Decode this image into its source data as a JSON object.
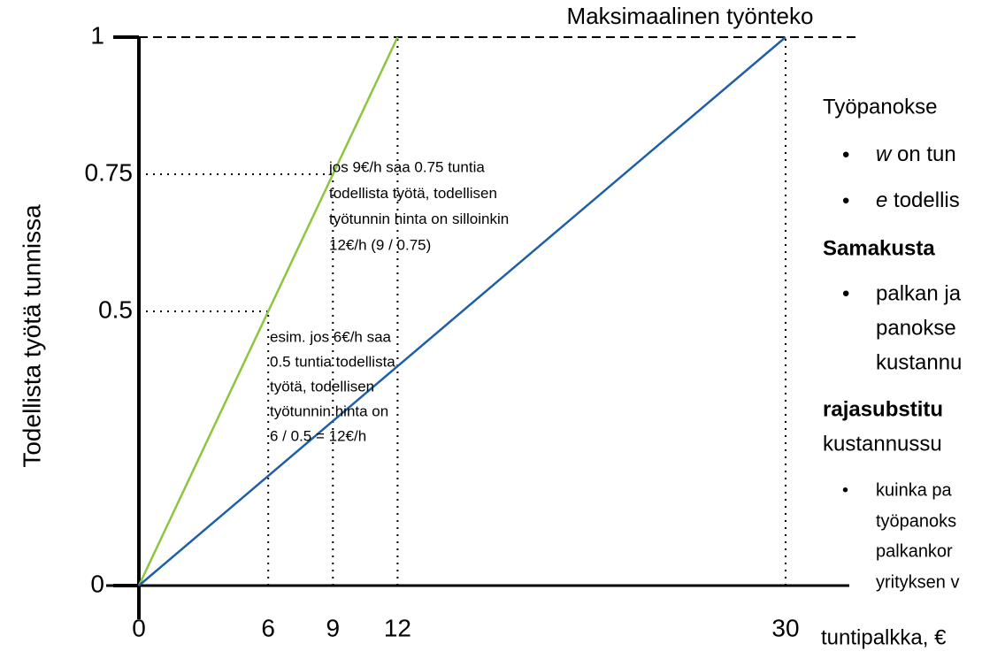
{
  "chart_data": {
    "type": "line",
    "ylabel": "Todellista työtä tunnissa",
    "xlabel": "tuntipalkka, €",
    "xlim": [
      0,
      30
    ],
    "ylim": [
      0,
      1
    ],
    "xticks": [
      0,
      6,
      9,
      12,
      30
    ],
    "yticks": [
      0,
      0.5,
      0.75,
      1
    ],
    "series": [
      {
        "color": "#8cc63e",
        "x": [
          0,
          12
        ],
        "values": [
          0,
          1
        ]
      },
      {
        "color": "#1f5fa8",
        "x": [
          0,
          30
        ],
        "values": [
          0,
          1
        ]
      }
    ],
    "max_label": "Maksimaalinen työnteko",
    "annotations": [
      [
        "jos 9€/h saa 0.75 tuntia",
        "todellista työtä, todellisen",
        "työtunnin hinta on silloinkin",
        "12€/h (9 / 0.75)"
      ],
      [
        "esim. jos 6€/h saa",
        "0.5 tuntia todellista",
        "työtä, todellisen",
        "työtunnin hinta on",
        "6 / 0.5 = 12€/h"
      ]
    ],
    "side_text": {
      "intro": "Työpanokse",
      "b1_var": "w",
      "b1_text": " on tun",
      "b2_var": "e",
      "b2_text": " todellis",
      "h1": "Samakusta",
      "b3": [
        "palkan ja",
        "panokse",
        "kustannu"
      ],
      "h2": "rajasubstitu",
      "h2b": "kustannussu",
      "b4": [
        "kuinka pa",
        "työpanoks",
        "palkankor",
        "yrityksen v"
      ]
    }
  }
}
